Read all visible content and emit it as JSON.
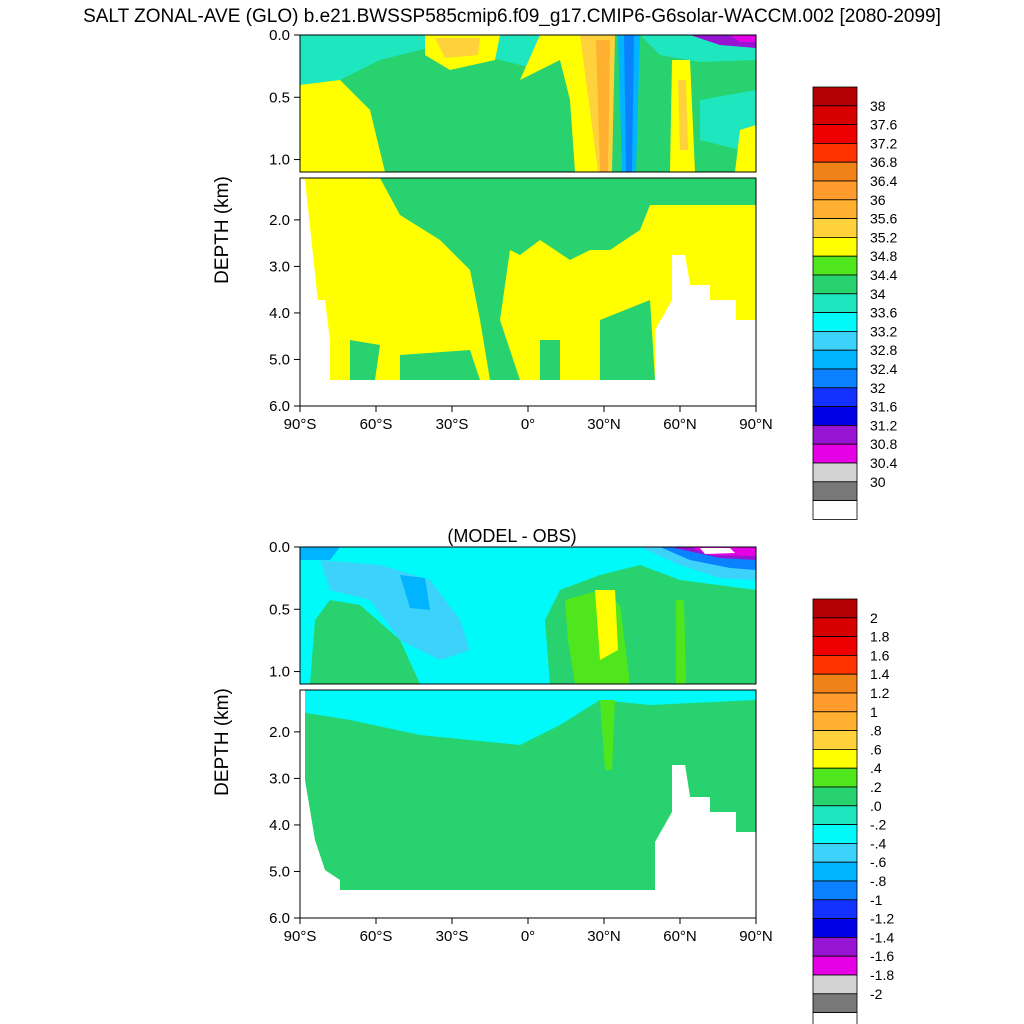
{
  "title": "SALT ZONAL-AVE (GLO) b.e21.BWSSP585cmip6.f09_g17.CMIP6-G6solar-WACCM.002 [2080-2099]",
  "chart_data": [
    {
      "type": "heatmap",
      "title": "",
      "ylabel": "DEPTH (km)",
      "xlabel": "",
      "x_ticks": [
        "90°S",
        "60°S",
        "30°S",
        "0°",
        "30°N",
        "60°N",
        "90°N"
      ],
      "y_ticks_upper": [
        "0.0",
        "0.5",
        "1.0"
      ],
      "y_ticks_lower": [
        "2.0",
        "3.0",
        "4.0",
        "5.0",
        "6.0"
      ],
      "xlim": [
        -90,
        90
      ],
      "ylim_km": [
        0,
        6
      ],
      "colorbar": {
        "labels": [
          "38",
          "37.6",
          "37.2",
          "36.8",
          "36.4",
          "36",
          "35.6",
          "35.2",
          "34.8",
          "34.4",
          "34",
          "33.6",
          "33.2",
          "32.8",
          "32.4",
          "32",
          "31.6",
          "31.2",
          "30.8",
          "30.4",
          "30"
        ],
        "colors": [
          "#b30000",
          "#d60000",
          "#ee0000",
          "#ff3300",
          "#f08218",
          "#ff9a2c",
          "#ffb030",
          "#ffd23c",
          "#ffff00",
          "#50e61e",
          "#28d26e",
          "#1ee6be",
          "#00fafa",
          "#3cd2fa",
          "#00b4ff",
          "#0a82ff",
          "#1432ff",
          "#0000e6",
          "#9614d2",
          "#e600e6",
          "#d2d2d2",
          "#787878",
          "#ffffff"
        ]
      }
    },
    {
      "type": "heatmap",
      "title": "(MODEL - OBS)",
      "ylabel": "DEPTH (km)",
      "xlabel": "",
      "x_ticks": [
        "90°S",
        "60°S",
        "30°S",
        "0°",
        "30°N",
        "60°N",
        "90°N"
      ],
      "y_ticks_upper": [
        "0.0",
        "0.5",
        "1.0"
      ],
      "y_ticks_lower": [
        "2.0",
        "3.0",
        "4.0",
        "5.0",
        "6.0"
      ],
      "xlim": [
        -90,
        90
      ],
      "ylim_km": [
        0,
        6
      ],
      "colorbar": {
        "labels": [
          "2",
          "1.8",
          "1.6",
          "1.4",
          "1.2",
          "1",
          ".8",
          ".6",
          ".4",
          ".2",
          ".0",
          "-.2",
          "-.4",
          "-.6",
          "-.8",
          "-1",
          "-1.2",
          "-1.4",
          "-1.6",
          "-1.8",
          "-2"
        ],
        "colors": [
          "#b30000",
          "#d60000",
          "#ee0000",
          "#ff3300",
          "#f08218",
          "#ff9a2c",
          "#ffb030",
          "#ffd23c",
          "#ffff00",
          "#50e61e",
          "#28d26e",
          "#1ee6be",
          "#00fafa",
          "#3cd2fa",
          "#00b4ff",
          "#0a82ff",
          "#1432ff",
          "#0000e6",
          "#9614d2",
          "#e600e6",
          "#d2d2d2",
          "#787878",
          "#ffffff"
        ]
      }
    }
  ]
}
